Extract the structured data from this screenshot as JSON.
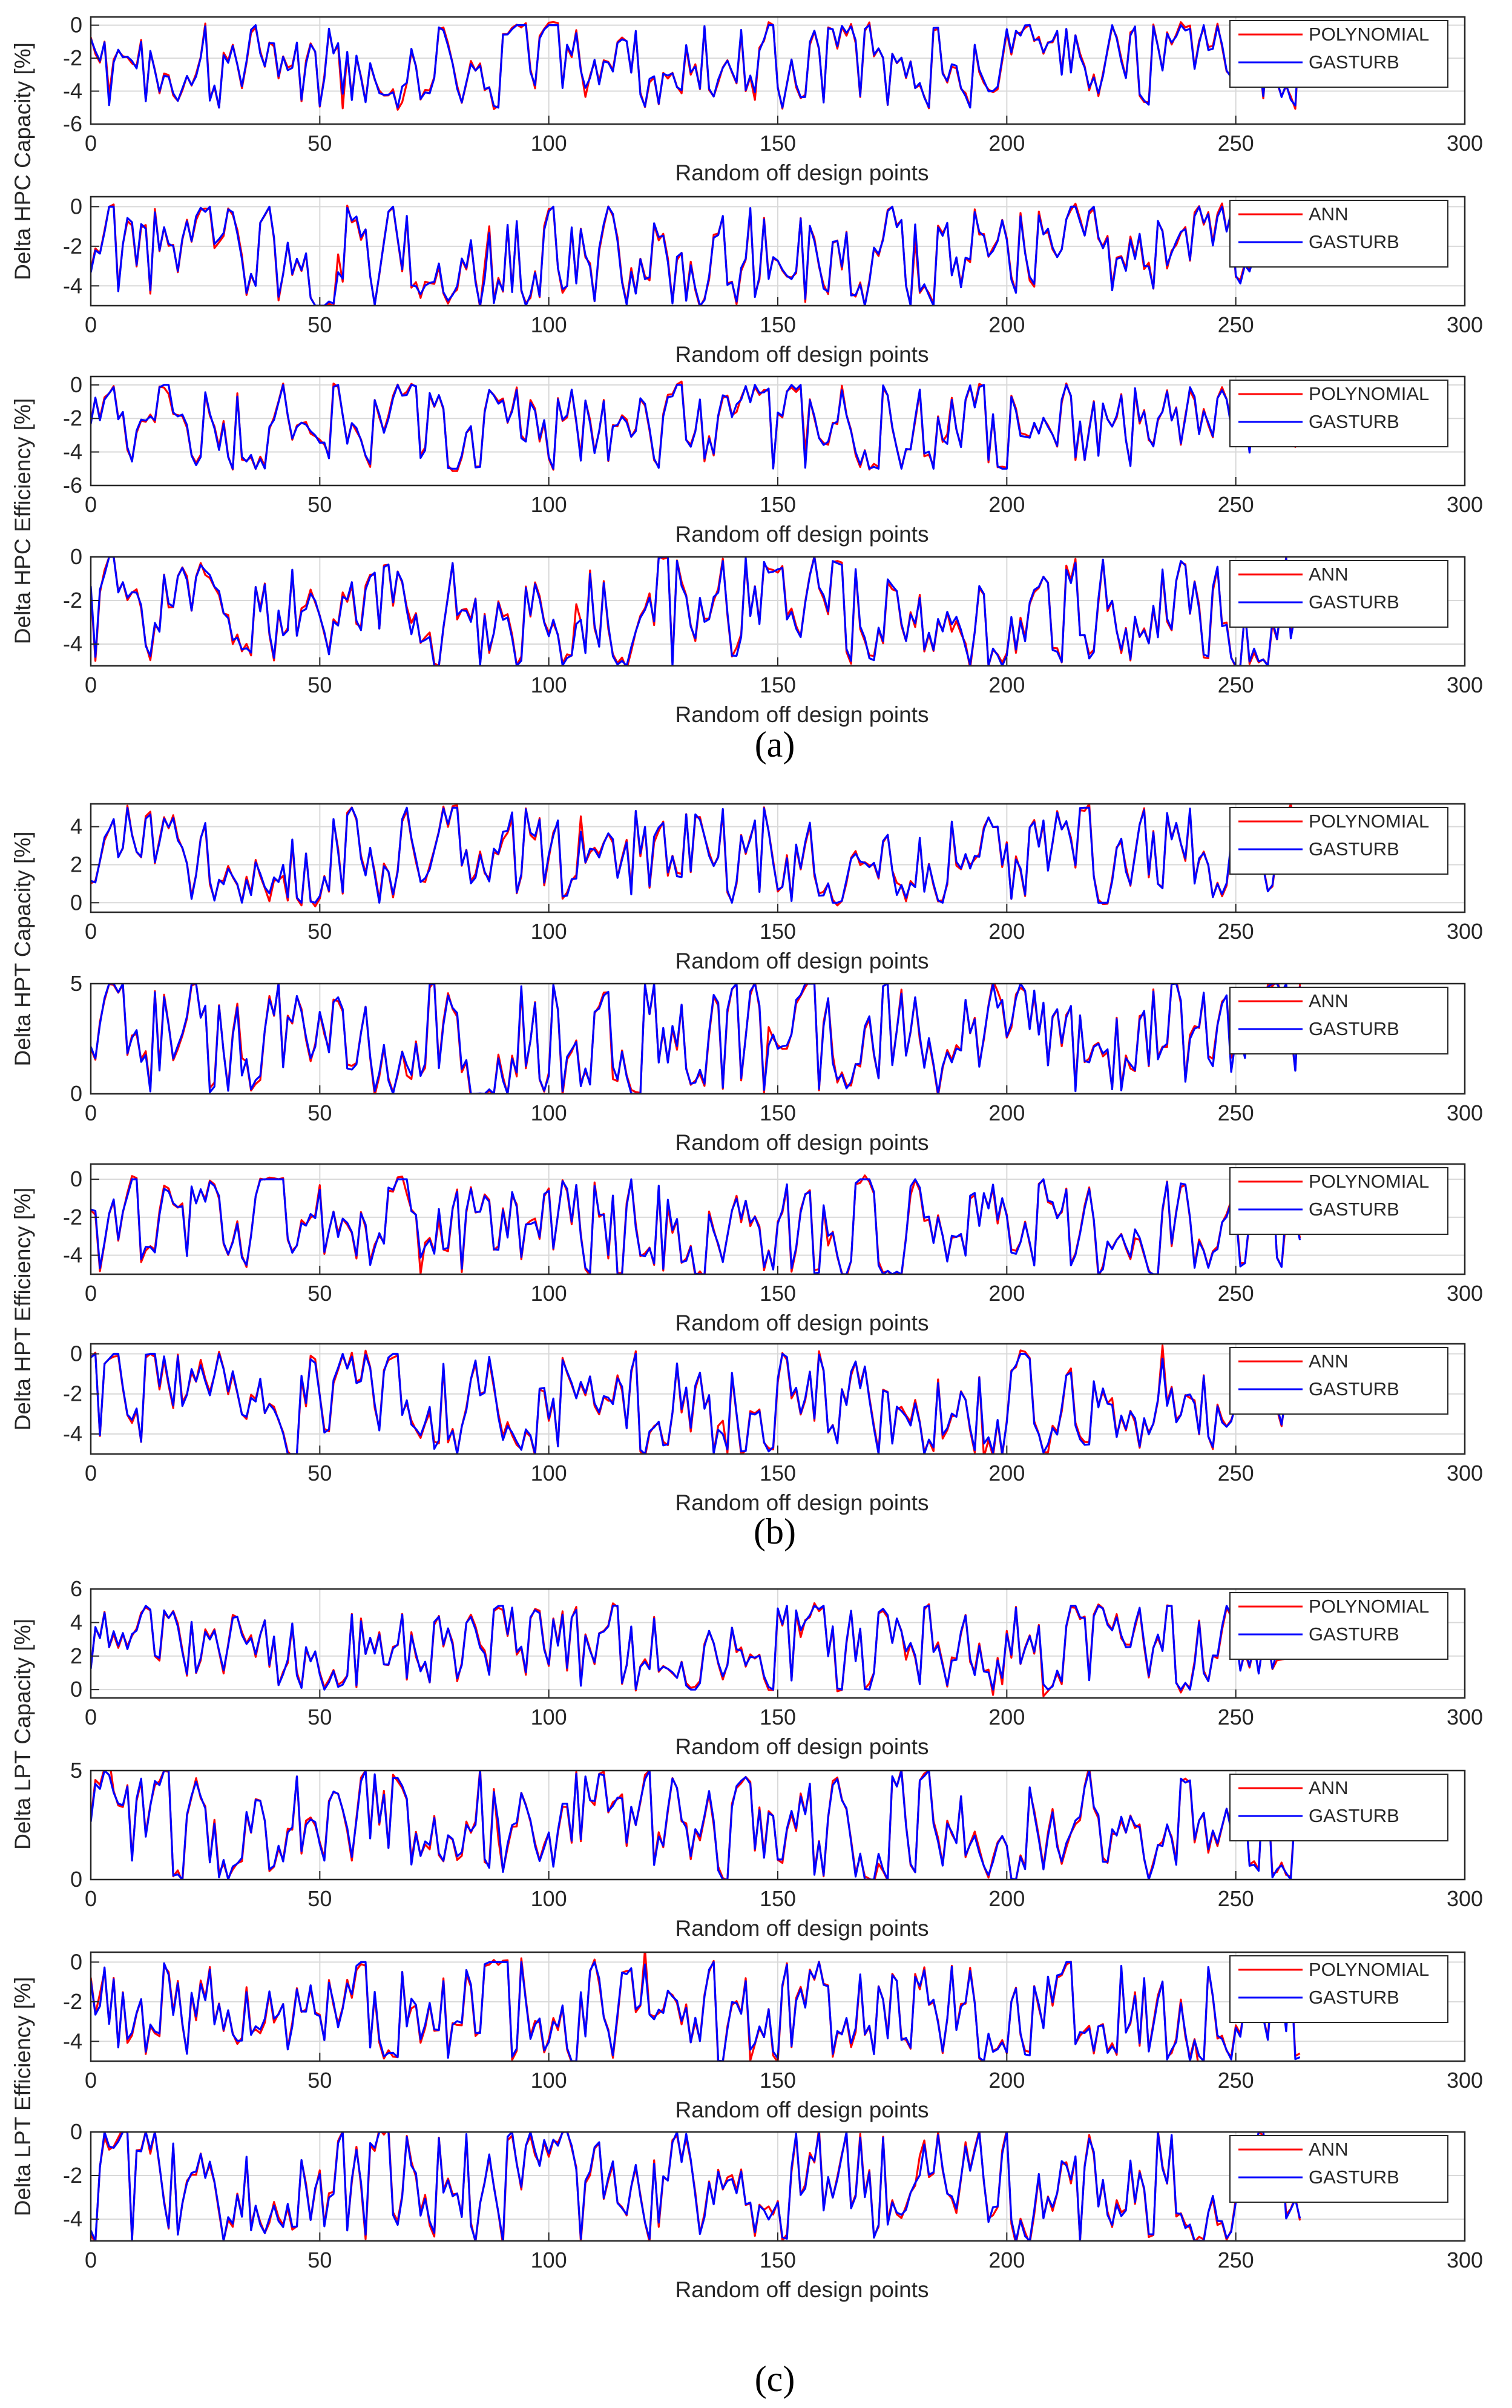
{
  "figure": {
    "panel_labels": [
      "(a)",
      "(b)",
      "(c)"
    ],
    "colors": {
      "model": "#ff0000",
      "reference": "#0000ff",
      "grid": "#d9d9d9",
      "axis": "#262626"
    }
  },
  "chart_data": [
    {
      "type": "line",
      "panel": "(a)",
      "ylabel_group": "Delta HPC Capacity  [%]",
      "xlabel": "Random off design points",
      "xlim": [
        0,
        300
      ],
      "ylim": [
        -6,
        0.5
      ],
      "yticks": [
        -6,
        -4,
        -2,
        0
      ],
      "xticks": [
        0,
        50,
        100,
        150,
        200,
        250,
        300
      ],
      "grid": true,
      "legend": "top-right",
      "n_points": 265,
      "y_range": [
        -5,
        0
      ],
      "series": [
        {
          "name": "POLYNOMIAL",
          "values": []
        },
        {
          "name": "GASTURB",
          "values": []
        }
      ]
    },
    {
      "type": "line",
      "panel": "(a)",
      "xlabel": "Random off design points",
      "xlim": [
        0,
        300
      ],
      "ylim": [
        -5,
        0.5
      ],
      "yticks": [
        -4,
        -2,
        0
      ],
      "xticks": [
        0,
        50,
        100,
        150,
        200,
        250,
        300
      ],
      "grid": true,
      "legend": "top-right",
      "n_points": 265,
      "y_range": [
        -5,
        0
      ],
      "series": [
        {
          "name": "ANN",
          "values": []
        },
        {
          "name": "GASTURB",
          "values": []
        }
      ]
    },
    {
      "type": "line",
      "panel": "(a)",
      "ylabel_group": "Delta HPC Efficiency [%]",
      "xlabel": "Random off design points",
      "xlim": [
        0,
        300
      ],
      "ylim": [
        -6,
        0.5
      ],
      "yticks": [
        -6,
        -4,
        -2,
        0
      ],
      "xticks": [
        0,
        50,
        100,
        150,
        200,
        250,
        300
      ],
      "grid": true,
      "legend": "top-right",
      "n_points": 265,
      "y_range": [
        -5,
        0
      ],
      "series": [
        {
          "name": "POLYNOMIAL",
          "values": []
        },
        {
          "name": "GASTURB",
          "values": []
        }
      ]
    },
    {
      "type": "line",
      "panel": "(a)",
      "xlabel": "Random off design points",
      "xlim": [
        0,
        300
      ],
      "ylim": [
        -5,
        0
      ],
      "yticks": [
        -4,
        -2,
        0
      ],
      "xticks": [
        0,
        50,
        100,
        150,
        200,
        250,
        300
      ],
      "grid": true,
      "legend": "top-right",
      "n_points": 265,
      "y_range": [
        -5,
        0
      ],
      "series": [
        {
          "name": "ANN",
          "values": []
        },
        {
          "name": "GASTURB",
          "values": []
        }
      ]
    },
    {
      "type": "line",
      "panel": "(b)",
      "ylabel_group": "Delta HPT Capacity [%]",
      "xlabel": "Random off design points",
      "xlim": [
        0,
        300
      ],
      "ylim": [
        -0.5,
        5.2
      ],
      "yticks": [
        0,
        2,
        4
      ],
      "xticks": [
        0,
        50,
        100,
        150,
        200,
        250,
        300
      ],
      "grid": true,
      "legend": "top-right",
      "n_points": 265,
      "y_range": [
        0,
        5
      ],
      "series": [
        {
          "name": "POLYNOMIAL",
          "values": []
        },
        {
          "name": "GASTURB",
          "values": []
        }
      ]
    },
    {
      "type": "line",
      "panel": "(b)",
      "xlabel": "Random off design points",
      "xlim": [
        0,
        300
      ],
      "ylim": [
        0,
        5
      ],
      "yticks": [
        0,
        5
      ],
      "xticks": [
        0,
        50,
        100,
        150,
        200,
        250,
        300
      ],
      "grid": true,
      "legend": "top-right",
      "n_points": 265,
      "y_range": [
        0,
        5
      ],
      "series": [
        {
          "name": "ANN",
          "values": []
        },
        {
          "name": "GASTURB",
          "values": []
        }
      ]
    },
    {
      "type": "line",
      "panel": "(b)",
      "ylabel_group": "Delta HPT Efficiency [%]",
      "xlabel": "Random off design points",
      "xlim": [
        0,
        300
      ],
      "ylim": [
        -5,
        0.8
      ],
      "yticks": [
        -4,
        -2,
        0
      ],
      "xticks": [
        0,
        50,
        100,
        150,
        200,
        250,
        300
      ],
      "grid": true,
      "legend": "top-right",
      "n_points": 265,
      "y_range": [
        -5,
        0
      ],
      "series": [
        {
          "name": "POLYNOMIAL",
          "values": []
        },
        {
          "name": "GASTURB",
          "values": []
        }
      ]
    },
    {
      "type": "line",
      "panel": "(b)",
      "xlabel": "Random off design points",
      "xlim": [
        0,
        300
      ],
      "ylim": [
        -5,
        0.5
      ],
      "yticks": [
        -4,
        -2,
        0
      ],
      "xticks": [
        0,
        50,
        100,
        150,
        200,
        250,
        300
      ],
      "grid": true,
      "legend": "top-right",
      "n_points": 265,
      "y_range": [
        -5,
        0
      ],
      "series": [
        {
          "name": "ANN",
          "values": []
        },
        {
          "name": "GASTURB",
          "values": []
        }
      ]
    },
    {
      "type": "line",
      "panel": "(c)",
      "ylabel_group": "Delta LPT Capacity [%]",
      "xlabel": "Random off design points",
      "xlim": [
        0,
        300
      ],
      "ylim": [
        -0.5,
        6
      ],
      "yticks": [
        0,
        2,
        4,
        6
      ],
      "xticks": [
        0,
        50,
        100,
        150,
        200,
        250,
        300
      ],
      "grid": true,
      "legend": "top-right",
      "n_points": 265,
      "y_range": [
        0,
        5
      ],
      "series": [
        {
          "name": "POLYNOMIAL",
          "values": []
        },
        {
          "name": "GASTURB",
          "values": []
        }
      ]
    },
    {
      "type": "line",
      "panel": "(c)",
      "xlabel": "Random off design points",
      "xlim": [
        0,
        300
      ],
      "ylim": [
        0,
        5
      ],
      "yticks": [
        0,
        5
      ],
      "xticks": [
        0,
        50,
        100,
        150,
        200,
        250,
        300
      ],
      "grid": true,
      "legend": "top-right",
      "n_points": 265,
      "y_range": [
        0,
        5
      ],
      "series": [
        {
          "name": "ANN",
          "values": []
        },
        {
          "name": "GASTURB",
          "values": []
        }
      ]
    },
    {
      "type": "line",
      "panel": "(c)",
      "ylabel_group": "Delta LPT Efficiency [%]",
      "xlabel": "Random off design points",
      "xlim": [
        0,
        300
      ],
      "ylim": [
        -5,
        0.5
      ],
      "yticks": [
        -4,
        -2,
        0
      ],
      "xticks": [
        0,
        50,
        100,
        150,
        200,
        250,
        300
      ],
      "grid": true,
      "legend": "top-right",
      "n_points": 265,
      "y_range": [
        -5,
        0
      ],
      "series": [
        {
          "name": "POLYNOMIAL",
          "values": []
        },
        {
          "name": "GASTURB",
          "values": []
        }
      ]
    },
    {
      "type": "line",
      "panel": "(c)",
      "xlabel": "Random off design points",
      "xlim": [
        0,
        300
      ],
      "ylim": [
        -5,
        0
      ],
      "yticks": [
        -4,
        -2,
        0
      ],
      "xticks": [
        0,
        50,
        100,
        150,
        200,
        250,
        300
      ],
      "grid": true,
      "legend": "top-right",
      "n_points": 265,
      "y_range": [
        -5,
        0
      ],
      "series": [
        {
          "name": "ANN",
          "values": []
        },
        {
          "name": "GASTURB",
          "values": []
        }
      ]
    }
  ]
}
